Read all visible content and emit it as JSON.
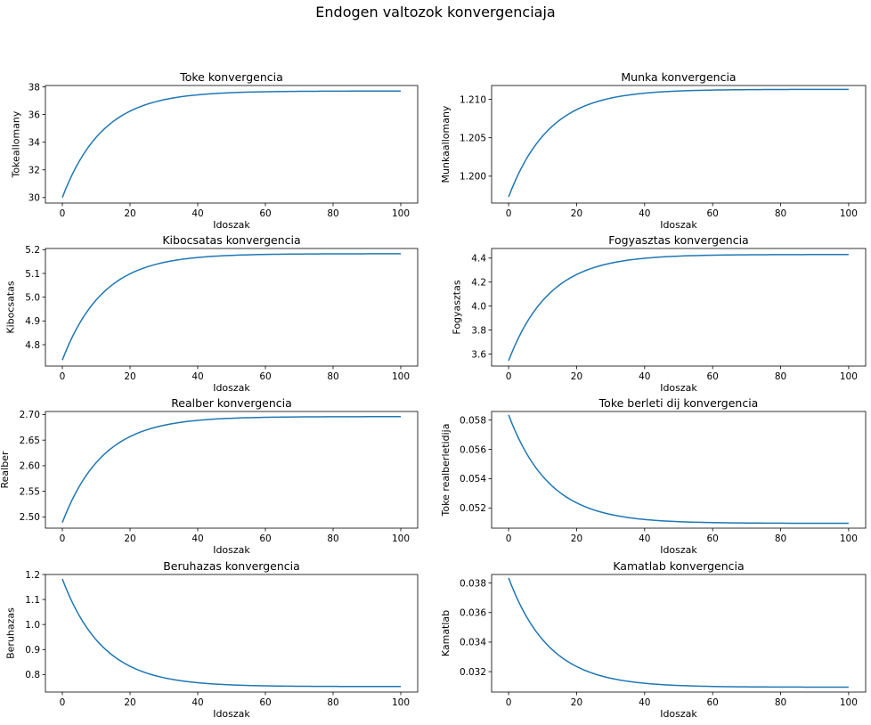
{
  "figure": {
    "suptitle": "Endogen valtozok konvergenciaja"
  },
  "chart_data": [
    {
      "type": "line",
      "title": "Toke konvergencia",
      "xlabel": "Idoszak",
      "ylabel": "Tokeallomany",
      "xlim": [
        -5,
        105
      ],
      "ylim": [
        29.6,
        38.1
      ],
      "xticks": [
        0,
        20,
        40,
        60,
        80,
        100
      ],
      "yticks": [
        30,
        32,
        34,
        36,
        38
      ],
      "ytick_labels": [
        "30",
        "32",
        "34",
        "36",
        "38"
      ],
      "series": [
        {
          "color": "#1f77b4",
          "x": [
            0,
            100
          ],
          "start": 30.0,
          "end": 37.7,
          "rate": 0.92
        }
      ]
    },
    {
      "type": "line",
      "title": "Munka konvergencia",
      "xlabel": "Idoszak",
      "ylabel": "Munkaallomany",
      "xlim": [
        -5,
        105
      ],
      "ylim": [
        1.1965,
        1.2118
      ],
      "xticks": [
        0,
        20,
        40,
        60,
        80,
        100
      ],
      "yticks": [
        1.2,
        1.205,
        1.21
      ],
      "ytick_labels": [
        "1.200",
        "1.205",
        "1.210"
      ],
      "series": [
        {
          "color": "#1f77b4",
          "x": [
            0,
            100
          ],
          "start": 1.1973,
          "end": 1.2113,
          "rate": 0.92
        }
      ]
    },
    {
      "type": "line",
      "title": "Kibocsatas konvergencia",
      "xlabel": "Idoszak",
      "ylabel": "Kibocsatas",
      "xlim": [
        -5,
        105
      ],
      "ylim": [
        4.71,
        5.205
      ],
      "xticks": [
        0,
        20,
        40,
        60,
        80,
        100
      ],
      "yticks": [
        4.8,
        4.9,
        5.0,
        5.1,
        5.2
      ],
      "ytick_labels": [
        "4.8",
        "4.9",
        "5.0",
        "5.1",
        "5.2"
      ],
      "series": [
        {
          "color": "#1f77b4",
          "x": [
            0,
            100
          ],
          "start": 4.735,
          "end": 5.183,
          "rate": 0.92
        }
      ]
    },
    {
      "type": "line",
      "title": "Fogyasztas konvergencia",
      "xlabel": "Idoszak",
      "ylabel": "Fogyasztas",
      "xlim": [
        -5,
        105
      ],
      "ylim": [
        3.5,
        4.48
      ],
      "xticks": [
        0,
        20,
        40,
        60,
        80,
        100
      ],
      "yticks": [
        3.6,
        3.8,
        4.0,
        4.2,
        4.4
      ],
      "ytick_labels": [
        "3.6",
        "3.8",
        "4.0",
        "4.2",
        "4.4"
      ],
      "series": [
        {
          "color": "#1f77b4",
          "x": [
            0,
            100
          ],
          "start": 3.545,
          "end": 4.43,
          "rate": 0.92
        }
      ]
    },
    {
      "type": "line",
      "title": "Realber konvergencia",
      "xlabel": "Idoszak",
      "ylabel": "Realber",
      "xlim": [
        -5,
        105
      ],
      "ylim": [
        2.478,
        2.706
      ],
      "xticks": [
        0,
        20,
        40,
        60,
        80,
        100
      ],
      "yticks": [
        2.5,
        2.55,
        2.6,
        2.65,
        2.7
      ],
      "ytick_labels": [
        "2.50",
        "2.55",
        "2.60",
        "2.65",
        "2.70"
      ],
      "series": [
        {
          "color": "#1f77b4",
          "x": [
            0,
            100
          ],
          "start": 2.489,
          "end": 2.696,
          "rate": 0.92
        }
      ]
    },
    {
      "type": "line",
      "title": "Toke berleti dij konvergencia",
      "xlabel": "Idoszak",
      "ylabel": "Toke realberletidija",
      "xlim": [
        -5,
        105
      ],
      "ylim": [
        0.05062,
        0.05858
      ],
      "xticks": [
        0,
        20,
        40,
        60,
        80,
        100
      ],
      "yticks": [
        0.052,
        0.054,
        0.056,
        0.058
      ],
      "ytick_labels": [
        "0.052",
        "0.054",
        "0.056",
        "0.058"
      ],
      "series": [
        {
          "color": "#1f77b4",
          "x": [
            0,
            100
          ],
          "start": 0.05835,
          "end": 0.05095,
          "rate": 0.92
        }
      ]
    },
    {
      "type": "line",
      "title": "Beruhazas konvergencia",
      "xlabel": "Idoszak",
      "ylabel": "Beruhazas",
      "xlim": [
        -5,
        105
      ],
      "ylim": [
        0.73,
        1.2
      ],
      "xticks": [
        0,
        20,
        40,
        60,
        80,
        100
      ],
      "yticks": [
        0.8,
        0.9,
        1.0,
        1.1,
        1.2
      ],
      "ytick_labels": [
        "0.8",
        "0.9",
        "1.0",
        "1.1",
        "1.2"
      ],
      "series": [
        {
          "color": "#1f77b4",
          "x": [
            0,
            100
          ],
          "start": 1.182,
          "end": 0.752,
          "rate": 0.92
        }
      ]
    },
    {
      "type": "line",
      "title": "Kamatlab konvergencia",
      "xlabel": "Idoszak",
      "ylabel": "Kamatlab",
      "xlim": [
        -5,
        105
      ],
      "ylim": [
        0.03062,
        0.03858
      ],
      "xticks": [
        0,
        20,
        40,
        60,
        80,
        100
      ],
      "yticks": [
        0.032,
        0.034,
        0.036,
        0.038
      ],
      "ytick_labels": [
        "0.032",
        "0.034",
        "0.036",
        "0.038"
      ],
      "series": [
        {
          "color": "#1f77b4",
          "x": [
            0,
            100
          ],
          "start": 0.03835,
          "end": 0.03095,
          "rate": 0.92
        }
      ]
    }
  ]
}
